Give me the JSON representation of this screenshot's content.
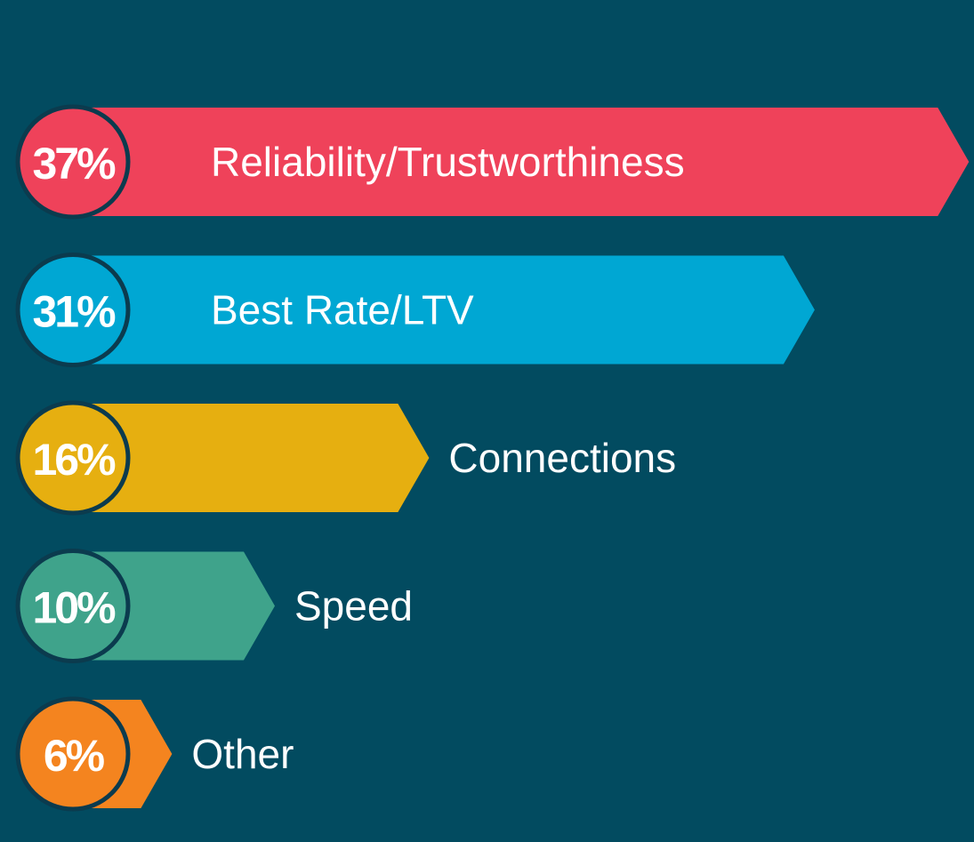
{
  "chart_data": {
    "type": "bar",
    "orientation": "horizontal",
    "categories": [
      "Reliability/Trustworthiness",
      "Best Rate/LTV",
      "Connections",
      "Speed",
      "Other"
    ],
    "values": [
      37,
      31,
      16,
      10,
      6
    ],
    "value_labels": [
      "37%",
      "31%",
      "16%",
      "10%",
      "6%"
    ],
    "colors": [
      "#ef425a",
      "#00a7d3",
      "#e6af10",
      "#3fa38b",
      "#f4841f"
    ]
  }
}
